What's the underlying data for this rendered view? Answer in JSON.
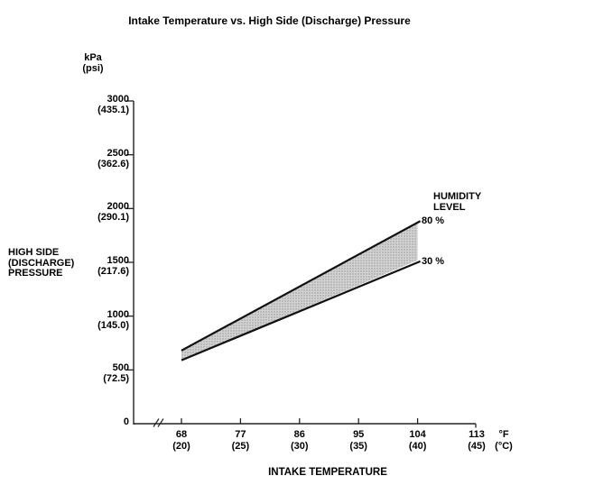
{
  "chart": {
    "title": "Intake Temperature vs. High Side (Discharge) Pressure",
    "y_axis": {
      "unit_line1": "kPa",
      "unit_line2": "(psi)",
      "label_line1": "HIGH SIDE",
      "label_line2": "(DISCHARGE)",
      "label_line3": "PRESSURE",
      "tick_labels": [
        {
          "kpa": "3000",
          "psi": "(435.1)",
          "value": 3000
        },
        {
          "kpa": "2500",
          "psi": "(362.6)",
          "value": 2500
        },
        {
          "kpa": "2000",
          "psi": "(290.1)",
          "value": 2000
        },
        {
          "kpa": "1500",
          "psi": "(217.6)",
          "value": 1500
        },
        {
          "kpa": "1000",
          "psi": "(145.0)",
          "value": 1000
        },
        {
          "kpa": "500",
          "psi": "(72.5)",
          "value": 500
        },
        {
          "kpa": "0",
          "psi": "",
          "value": 0
        }
      ]
    },
    "x_axis": {
      "label": "INTAKE TEMPERATURE",
      "unit_line1": "°F",
      "unit_line2": "(°C)",
      "tick_labels": [
        {
          "f": "68",
          "c": "(20)",
          "value": 68
        },
        {
          "f": "77",
          "c": "(25)",
          "value": 77
        },
        {
          "f": "86",
          "c": "(30)",
          "value": 86
        },
        {
          "f": "95",
          "c": "(35)",
          "value": 95
        },
        {
          "f": "104",
          "c": "(40)",
          "value": 104
        },
        {
          "f": "113",
          "c": "(45)",
          "value": 113
        }
      ]
    },
    "legend": {
      "title_line1": "HUMIDITY",
      "title_line2": "LEVEL"
    }
  },
  "chart_data": {
    "type": "area",
    "title": "Intake Temperature vs. High Side (Discharge) Pressure",
    "xlabel": "INTAKE TEMPERATURE",
    "ylabel": "HIGH SIDE (DISCHARGE) PRESSURE",
    "x_units": [
      "°F",
      "°C"
    ],
    "y_units": [
      "kPa",
      "psi"
    ],
    "xlim_f": [
      68,
      113
    ],
    "ylim_kpa": [
      0,
      3000
    ],
    "x_ticks_f": [
      68,
      77,
      86,
      95,
      104,
      113
    ],
    "x_ticks_c": [
      20,
      25,
      30,
      35,
      40,
      45
    ],
    "y_ticks_kpa": [
      0,
      500,
      1000,
      1500,
      2000,
      2500,
      3000
    ],
    "y_ticks_psi": [
      0,
      72.5,
      145.0,
      217.6,
      290.1,
      362.6,
      435.1
    ],
    "axis_break_x": true,
    "band_note": "shaded band between 30 % and 80 % humidity lines, from 68 °F (20 °C) to 104 °F (40 °C)",
    "series": [
      {
        "name": "80 %",
        "humidity_pct": 80,
        "x_f": [
          68,
          104
        ],
        "x_c": [
          20,
          40
        ],
        "kpa": [
          680,
          1870
        ]
      },
      {
        "name": "30 %",
        "humidity_pct": 30,
        "x_f": [
          68,
          104
        ],
        "x_c": [
          20,
          40
        ],
        "kpa": [
          590,
          1520
        ]
      }
    ]
  },
  "colors": {
    "line": "#111111",
    "axis": "#222222",
    "band_fill_base": "#d2d2d2",
    "band_fill_dot": "#959595",
    "text": "#000000"
  }
}
